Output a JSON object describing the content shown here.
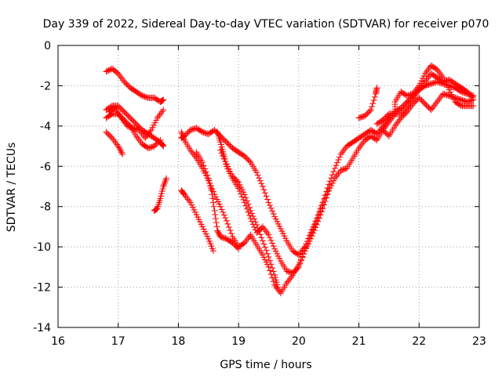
{
  "chart_data": {
    "type": "scatter",
    "title": "Day 339 of 2022, Sidereal Day-to-day VTEC variation (SDTVAR) for receiver p070",
    "xlabel": "GPS time / hours",
    "ylabel": "SDTVAR / TECUs",
    "xlim": [
      16,
      23
    ],
    "ylim": [
      -14,
      0
    ],
    "xticks": [
      16,
      17,
      18,
      19,
      20,
      21,
      22,
      23
    ],
    "yticks": [
      -14,
      -12,
      -10,
      -8,
      -6,
      -4,
      -2,
      0
    ],
    "grid": true,
    "marker": "+",
    "color": "#ff0000",
    "series": [
      {
        "points": [
          [
            16.8,
            -1.3
          ],
          [
            16.9,
            -1.15
          ],
          [
            17.0,
            -1.4
          ],
          [
            17.1,
            -1.8
          ],
          [
            17.2,
            -2.1
          ],
          [
            17.3,
            -2.3
          ],
          [
            17.4,
            -2.5
          ],
          [
            17.5,
            -2.6
          ],
          [
            17.6,
            -2.6
          ],
          [
            17.7,
            -2.8
          ],
          [
            17.75,
            -2.7
          ]
        ]
      },
      {
        "points": [
          [
            16.8,
            -3.2
          ],
          [
            16.9,
            -3.0
          ],
          [
            17.0,
            -3.0
          ],
          [
            17.1,
            -3.3
          ],
          [
            17.2,
            -3.6
          ],
          [
            17.3,
            -3.9
          ],
          [
            17.4,
            -4.2
          ],
          [
            17.5,
            -4.4
          ],
          [
            17.6,
            -4.6
          ],
          [
            17.7,
            -4.8
          ],
          [
            17.75,
            -5.0
          ]
        ]
      },
      {
        "points": [
          [
            16.8,
            -3.6
          ],
          [
            16.9,
            -3.4
          ],
          [
            17.0,
            -3.4
          ],
          [
            17.1,
            -3.7
          ],
          [
            17.2,
            -4.0
          ],
          [
            17.3,
            -4.5
          ],
          [
            17.4,
            -4.9
          ],
          [
            17.5,
            -5.1
          ],
          [
            17.6,
            -5.0
          ],
          [
            17.7,
            -4.7
          ]
        ]
      },
      {
        "points": [
          [
            16.85,
            -3.3
          ],
          [
            16.95,
            -3.1
          ],
          [
            17.05,
            -3.6
          ],
          [
            17.15,
            -4.0
          ],
          [
            17.25,
            -4.1
          ],
          [
            17.35,
            -4.2
          ],
          [
            17.45,
            -4.6
          ],
          [
            17.55,
            -4.2
          ],
          [
            17.65,
            -3.6
          ],
          [
            17.75,
            -3.2
          ]
        ]
      },
      {
        "points": [
          [
            16.8,
            -4.3
          ],
          [
            16.9,
            -4.6
          ],
          [
            17.0,
            -5.0
          ],
          [
            17.07,
            -5.4
          ]
        ]
      },
      {
        "points": [
          [
            17.6,
            -8.2
          ],
          [
            17.65,
            -8.1
          ],
          [
            17.7,
            -7.6
          ],
          [
            17.75,
            -7.0
          ],
          [
            17.8,
            -6.6
          ]
        ]
      },
      {
        "points": [
          [
            18.05,
            -4.3
          ],
          [
            18.1,
            -4.7
          ],
          [
            18.2,
            -5.2
          ],
          [
            18.3,
            -5.6
          ],
          [
            18.4,
            -6.1
          ],
          [
            18.5,
            -6.7
          ],
          [
            18.6,
            -7.4
          ],
          [
            18.7,
            -8.0
          ],
          [
            18.8,
            -8.7
          ],
          [
            18.9,
            -9.5
          ],
          [
            19.0,
            -10.0
          ],
          [
            19.1,
            -9.8
          ],
          [
            19.2,
            -9.4
          ],
          [
            19.3,
            -9.9
          ],
          [
            19.4,
            -10.4
          ],
          [
            19.5,
            -11.0
          ],
          [
            19.6,
            -11.9
          ],
          [
            19.7,
            -12.3
          ],
          [
            19.8,
            -11.8
          ],
          [
            19.9,
            -11.4
          ],
          [
            20.0,
            -10.9
          ],
          [
            20.1,
            -10.2
          ],
          [
            20.2,
            -9.6
          ],
          [
            20.3,
            -8.9
          ],
          [
            20.4,
            -8.1
          ],
          [
            20.5,
            -7.2
          ],
          [
            20.6,
            -6.6
          ],
          [
            20.7,
            -6.2
          ],
          [
            20.8,
            -6.1
          ],
          [
            20.9,
            -5.6
          ],
          [
            21.0,
            -5.1
          ],
          [
            21.1,
            -4.7
          ],
          [
            21.2,
            -4.5
          ],
          [
            21.3,
            -4.7
          ],
          [
            21.4,
            -4.2
          ],
          [
            21.5,
            -3.8
          ],
          [
            21.6,
            -3.4
          ],
          [
            21.7,
            -3.4
          ],
          [
            21.8,
            -3.0
          ],
          [
            21.9,
            -2.6
          ],
          [
            22.0,
            -2.2
          ],
          [
            22.1,
            -1.8
          ],
          [
            22.2,
            -1.4
          ],
          [
            22.3,
            -1.6
          ],
          [
            22.4,
            -1.8
          ],
          [
            22.5,
            -1.7
          ],
          [
            22.6,
            -1.9
          ],
          [
            22.7,
            -2.1
          ],
          [
            22.8,
            -2.3
          ],
          [
            22.9,
            -2.6
          ]
        ]
      },
      {
        "points": [
          [
            18.05,
            -4.6
          ],
          [
            18.1,
            -4.5
          ],
          [
            18.2,
            -4.2
          ],
          [
            18.3,
            -4.1
          ],
          [
            18.4,
            -4.3
          ],
          [
            18.5,
            -4.4
          ],
          [
            18.6,
            -4.2
          ],
          [
            18.7,
            -4.5
          ],
          [
            18.8,
            -4.8
          ],
          [
            18.9,
            -5.1
          ],
          [
            19.0,
            -5.3
          ],
          [
            19.1,
            -5.5
          ],
          [
            19.2,
            -5.8
          ],
          [
            19.3,
            -6.3
          ],
          [
            19.4,
            -7.0
          ],
          [
            19.5,
            -7.8
          ],
          [
            19.6,
            -8.5
          ],
          [
            19.7,
            -9.1
          ],
          [
            19.8,
            -9.7
          ],
          [
            19.9,
            -10.2
          ],
          [
            20.0,
            -10.4
          ],
          [
            20.1,
            -10.0
          ],
          [
            20.2,
            -9.3
          ],
          [
            20.3,
            -8.6
          ],
          [
            20.4,
            -7.8
          ],
          [
            20.5,
            -6.9
          ],
          [
            20.6,
            -6.1
          ],
          [
            20.7,
            -5.4
          ],
          [
            20.8,
            -5.0
          ],
          [
            20.9,
            -4.8
          ],
          [
            21.0,
            -4.6
          ],
          [
            21.1,
            -4.4
          ],
          [
            21.2,
            -4.2
          ],
          [
            21.3,
            -4.4
          ],
          [
            21.4,
            -4.0
          ],
          [
            21.5,
            -3.6
          ],
          [
            21.6,
            -3.3
          ],
          [
            21.7,
            -3.1
          ],
          [
            21.8,
            -2.8
          ],
          [
            21.9,
            -2.5
          ],
          [
            22.0,
            -2.2
          ],
          [
            22.1,
            -2.0
          ],
          [
            22.2,
            -1.9
          ],
          [
            22.3,
            -1.8
          ],
          [
            22.4,
            -1.9
          ],
          [
            22.5,
            -2.0
          ],
          [
            22.6,
            -2.1
          ],
          [
            22.7,
            -2.3
          ],
          [
            22.8,
            -2.4
          ],
          [
            22.9,
            -2.5
          ]
        ]
      },
      {
        "points": [
          [
            18.65,
            -4.3
          ],
          [
            18.7,
            -4.8
          ],
          [
            18.75,
            -5.4
          ],
          [
            18.8,
            -6.0
          ],
          [
            18.9,
            -6.6
          ],
          [
            19.0,
            -7.1
          ],
          [
            19.1,
            -7.8
          ],
          [
            19.2,
            -8.6
          ],
          [
            19.3,
            -9.3
          ],
          [
            19.4,
            -9.0
          ],
          [
            19.5,
            -9.4
          ],
          [
            19.6,
            -10.1
          ],
          [
            19.7,
            -10.7
          ],
          [
            19.8,
            -11.2
          ],
          [
            19.9,
            -11.3
          ],
          [
            20.0,
            -11.0
          ],
          [
            20.1,
            -10.2
          ],
          [
            20.2,
            -9.4
          ],
          [
            20.3,
            -8.7
          ],
          [
            20.4,
            -7.9
          ],
          [
            20.5,
            -7.1
          ]
        ]
      },
      {
        "points": [
          [
            18.05,
            -7.2
          ],
          [
            18.1,
            -7.4
          ],
          [
            18.2,
            -7.8
          ],
          [
            18.3,
            -8.4
          ],
          [
            18.4,
            -9.0
          ],
          [
            18.5,
            -9.6
          ],
          [
            18.58,
            -10.2
          ]
        ]
      },
      {
        "points": [
          [
            18.3,
            -5.3
          ],
          [
            18.4,
            -5.8
          ],
          [
            18.5,
            -6.6
          ],
          [
            18.55,
            -7.2
          ],
          [
            18.6,
            -8.2
          ],
          [
            18.65,
            -9.2
          ],
          [
            18.7,
            -9.5
          ],
          [
            18.8,
            -9.6
          ],
          [
            18.9,
            -9.8
          ],
          [
            19.0,
            -10.1
          ]
        ]
      },
      {
        "points": [
          [
            18.7,
            -5.2
          ],
          [
            18.8,
            -5.9
          ],
          [
            18.9,
            -6.5
          ],
          [
            19.0,
            -6.8
          ],
          [
            19.1,
            -7.4
          ],
          [
            19.2,
            -8.2
          ],
          [
            19.3,
            -8.9
          ],
          [
            19.4,
            -9.7
          ],
          [
            19.5,
            -10.5
          ],
          [
            19.6,
            -11.4
          ],
          [
            19.65,
            -12.0
          ]
        ]
      },
      {
        "points": [
          [
            21.0,
            -3.6
          ],
          [
            21.1,
            -3.5
          ],
          [
            21.2,
            -3.2
          ],
          [
            21.28,
            -2.4
          ],
          [
            21.3,
            -2.1
          ]
        ]
      },
      {
        "points": [
          [
            21.3,
            -3.9
          ],
          [
            21.4,
            -3.7
          ],
          [
            21.5,
            -3.4
          ],
          [
            21.6,
            -3.4
          ],
          [
            21.6,
            -2.8
          ],
          [
            21.7,
            -2.3
          ],
          [
            21.8,
            -2.5
          ],
          [
            21.9,
            -2.4
          ],
          [
            22.0,
            -2.0
          ],
          [
            22.1,
            -1.4
          ],
          [
            22.2,
            -1.0
          ],
          [
            22.3,
            -1.2
          ],
          [
            22.4,
            -1.6
          ],
          [
            22.5,
            -2.2
          ],
          [
            22.6,
            -2.8
          ],
          [
            22.7,
            -3.0
          ],
          [
            22.8,
            -3.0
          ],
          [
            22.9,
            -3.0
          ]
        ]
      },
      {
        "points": [
          [
            21.4,
            -4.2
          ],
          [
            21.5,
            -4.5
          ],
          [
            21.6,
            -4.0
          ],
          [
            21.7,
            -3.6
          ],
          [
            21.8,
            -3.3
          ],
          [
            21.9,
            -2.9
          ],
          [
            22.0,
            -2.6
          ],
          [
            22.1,
            -2.9
          ],
          [
            22.2,
            -3.2
          ],
          [
            22.3,
            -2.8
          ],
          [
            22.4,
            -2.4
          ],
          [
            22.5,
            -2.5
          ],
          [
            22.6,
            -2.6
          ],
          [
            22.7,
            -2.7
          ],
          [
            22.8,
            -2.8
          ],
          [
            22.9,
            -2.7
          ]
        ]
      }
    ]
  }
}
